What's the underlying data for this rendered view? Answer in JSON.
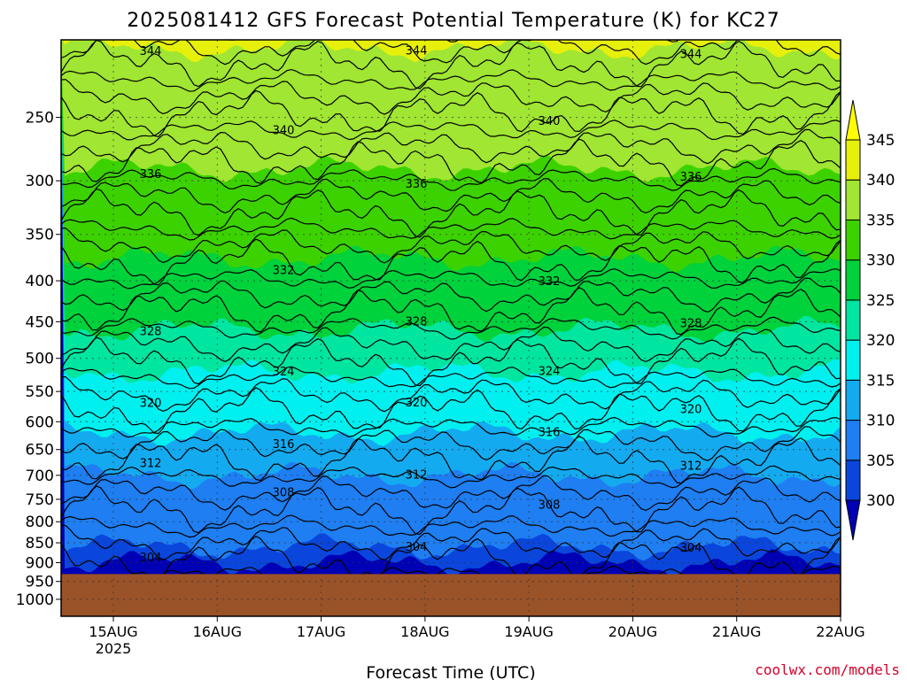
{
  "chart_data": {
    "type": "time-height contour (filled)",
    "title": "2025081412 GFS Forecast Potential Temperature (K) for KC27",
    "xlabel": "Forecast Time (UTC)",
    "x_ticks": [
      "15AUG",
      "16AUG",
      "17AUG",
      "18AUG",
      "19AUG",
      "20AUG",
      "21AUG",
      "22AUG"
    ],
    "x_year_label": "2025",
    "y_ticks": [
      250,
      300,
      350,
      400,
      450,
      500,
      550,
      600,
      650,
      700,
      750,
      800,
      850,
      900,
      950,
      1000
    ],
    "y_scale": "log-pressure (hPa, top = 200)",
    "grid": "dotted",
    "colorbar": {
      "levels": [
        300,
        305,
        310,
        315,
        320,
        325,
        330,
        335,
        340,
        345
      ],
      "colors": [
        "#0000b4",
        "#0a46dc",
        "#1e7ef2",
        "#14aaf0",
        "#00f0f0",
        "#00e6a0",
        "#00d23c",
        "#3cd200",
        "#a0e632",
        "#e6f00a",
        "#ffff00"
      ]
    },
    "contour_labels": [
      "344",
      "340",
      "336",
      "332",
      "328",
      "324",
      "320",
      "316",
      "312",
      "308",
      "304"
    ],
    "terrain_color": "#9a5228",
    "terrain_top_hPa": 930
  },
  "credit": "coolwx.com/models"
}
